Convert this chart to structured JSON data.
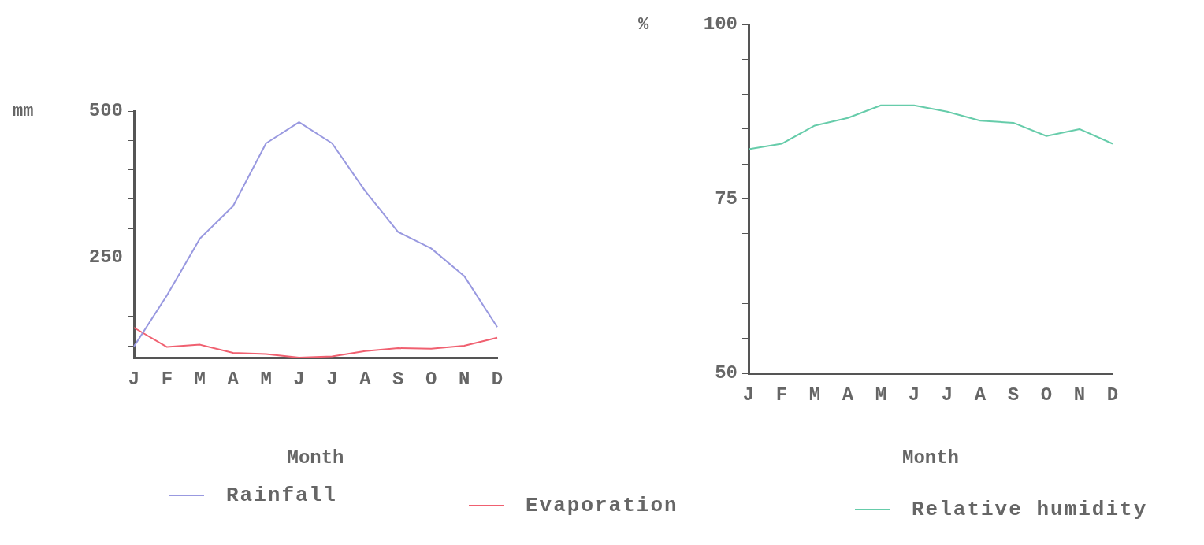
{
  "chart_data": [
    {
      "type": "line",
      "xlabel": "Month",
      "ylabel": "mm",
      "categories": [
        "J",
        "F",
        "M",
        "A",
        "M",
        "J",
        "J",
        "A",
        "S",
        "O",
        "N",
        "D"
      ],
      "ylim": [
        80,
        500
      ],
      "yticks": [
        {
          "value": 100,
          "label": null
        },
        {
          "value": 150,
          "label": null
        },
        {
          "value": 200,
          "label": null
        },
        250,
        {
          "value": 300,
          "label": null
        },
        {
          "value": 350,
          "label": null
        },
        {
          "value": 400,
          "label": null
        },
        {
          "value": 450,
          "label": null
        },
        500
      ],
      "legend": "bottom",
      "marker": "none",
      "series": [
        {
          "name": "Rainfall",
          "color": "#9999e0",
          "values": [
            99,
            186,
            283,
            338,
            445,
            481,
            445,
            364,
            294,
            266,
            219,
            132
          ]
        },
        {
          "name": "Evaporation",
          "color": "#f06070",
          "values": [
            131,
            98,
            102,
            88,
            86,
            80,
            82,
            91,
            96,
            95,
            100,
            114
          ]
        }
      ]
    },
    {
      "type": "line",
      "xlabel": "Month",
      "ylabel": "%",
      "categories": [
        "J",
        "F",
        "M",
        "A",
        "M",
        "J",
        "J",
        "A",
        "S",
        "O",
        "N",
        "D"
      ],
      "ylim": [
        50,
        100
      ],
      "yticks": [
        50,
        {
          "value": 55,
          "label": null
        },
        {
          "value": 60,
          "label": null
        },
        {
          "value": 65,
          "label": null
        },
        {
          "value": 70,
          "label": null
        },
        75,
        {
          "value": 80,
          "label": null
        },
        {
          "value": 85,
          "label": null
        },
        {
          "value": 90,
          "label": null
        },
        {
          "value": 95,
          "label": null
        },
        100
      ],
      "legend": "bottom",
      "marker": "none",
      "series": [
        {
          "name": "Relative humidity",
          "color": "#66ccaa",
          "values": [
            82.1,
            82.9,
            85.5,
            86.6,
            88.4,
            88.4,
            87.5,
            86.2,
            85.9,
            84.0,
            85.0,
            82.9
          ]
        }
      ]
    }
  ]
}
